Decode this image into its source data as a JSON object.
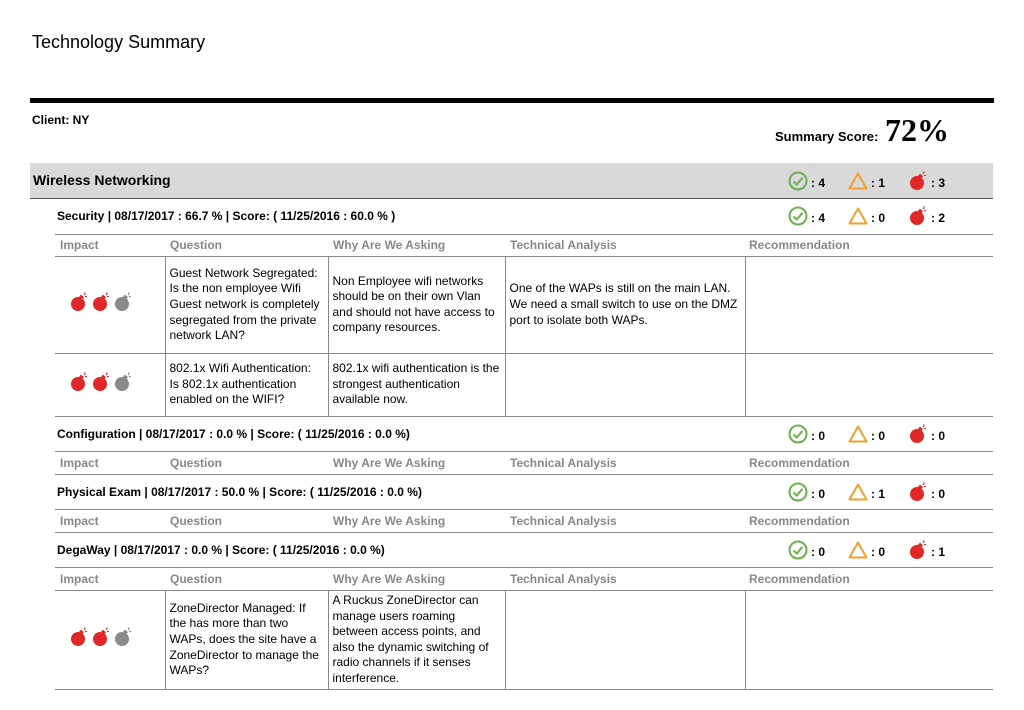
{
  "page_title": "Technology Summary",
  "client_label": "Client: NY",
  "summary_score_label": "Summary Score:",
  "summary_score_value": "72%",
  "colors": {
    "ok": "#6ab04c",
    "warn": "#f0a030",
    "bad": "#e02828",
    "gray": "#8a8a8a"
  },
  "category": {
    "title": "Wireless Networking",
    "ok": ": 4",
    "warn": ": 1",
    "bad": ": 3"
  },
  "columns": [
    "Impact",
    "Question",
    "Why Are We Asking",
    "Technical Analysis",
    "Recommendation"
  ],
  "sections": [
    {
      "title": "Security |  08/17/2017 : 66.7 % | Score: ( 11/25/2016 : 60.0 % )",
      "ok": ": 4",
      "warn": ": 0",
      "bad": ": 2",
      "rows": [
        {
          "impact": [
            1,
            1,
            0
          ],
          "question": "Guest Network Segregated: Is the non employee Wifi Guest network is completely segregated from the private network LAN?",
          "why": "Non Employee wifi networks should be on their own Vlan and should not have access to company resources.",
          "analysis": "One of the WAPs is still on the main LAN. We need a small switch to use on the DMZ port to isolate both WAPs.",
          "recommendation": ""
        },
        {
          "impact": [
            1,
            1,
            0
          ],
          "question": "802.1x Wifi Authentication: Is 802.1x authentication enabled on the WIFI?",
          "why": "802.1x wifi authentication is the strongest authentication available now.",
          "analysis": "",
          "recommendation": ""
        }
      ]
    },
    {
      "title": "Configuration |  08/17/2017 : 0.0 % | Score: ( 11/25/2016 : 0.0 %)",
      "ok": ": 0",
      "warn": ": 0",
      "bad": ": 0",
      "rows": []
    },
    {
      "title": "Physical Exam |  08/17/2017 : 50.0 % | Score: ( 11/25/2016 : 0.0 %)",
      "ok": ": 0",
      "warn": ": 1",
      "bad": ": 0",
      "rows": []
    },
    {
      "title": "DegaWay |  08/17/2017 : 0.0 % | Score: ( 11/25/2016 : 0.0 %)",
      "ok": ": 0",
      "warn": ": 0",
      "bad": ": 1",
      "rows": [
        {
          "impact": [
            1,
            1,
            0
          ],
          "question": "ZoneDirector Managed: If the has more than two WAPs, does the site have a ZoneDirector to manage the WAPs?",
          "why": "A Ruckus ZoneDirector can manage users roaming between access points, and also the dynamic switching of radio channels if it senses interference.",
          "analysis": "",
          "recommendation": ""
        }
      ]
    }
  ]
}
